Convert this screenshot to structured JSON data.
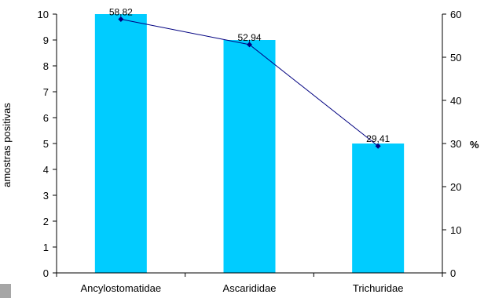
{
  "chart_data": {
    "type": "bar+line",
    "categories": [
      "Ancylostomatidae",
      "Ascarididae",
      "Trichuridae"
    ],
    "series": [
      {
        "type": "bar",
        "axis": "left",
        "values": [
          10,
          9,
          5
        ],
        "color": "#00CCFF"
      },
      {
        "type": "line",
        "axis": "right",
        "values": [
          58.82,
          52.94,
          29.41
        ],
        "labels": [
          "58,82",
          "52,94",
          "29,41"
        ],
        "color": "#000080"
      }
    ],
    "y_left": {
      "label": "amostras positivas",
      "ylim": [
        0,
        10
      ],
      "ticks": [
        "0",
        "1",
        "2",
        "3",
        "4",
        "5",
        "6",
        "7",
        "8",
        "9",
        "10"
      ]
    },
    "y_right": {
      "label": "%",
      "ylim": [
        0,
        60
      ],
      "ticks": [
        "0",
        "10",
        "20",
        "30",
        "40",
        "50",
        "60"
      ]
    },
    "grid": false,
    "legend": "none"
  }
}
